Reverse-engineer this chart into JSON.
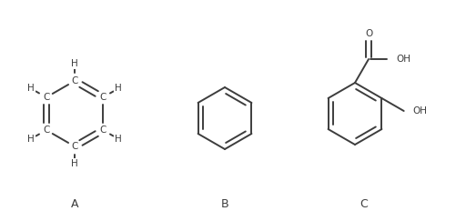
{
  "background_color": "#ffffff",
  "line_color": "#3d3d3d",
  "text_color": "#3d3d3d",
  "line_width": 1.4,
  "label_A": "A",
  "label_B": "B",
  "label_C": "C",
  "font_size_atoms": 7.5,
  "font_size_labels": 9,
  "fig_width": 5.12,
  "fig_height": 2.43,
  "dpi": 100
}
